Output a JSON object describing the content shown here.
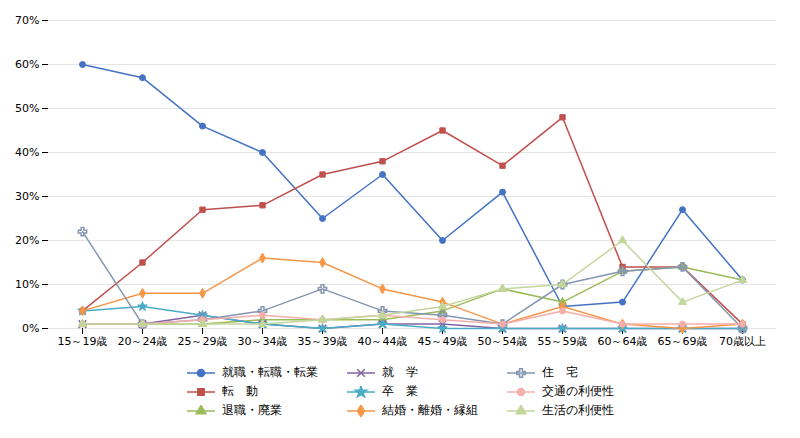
{
  "chart_data": {
    "type": "line",
    "categories": [
      "15～19歳",
      "20～24歳",
      "25～29歳",
      "30～34歳",
      "35～39歳",
      "40～44歳",
      "45～49歳",
      "50～54歳",
      "55～59歳",
      "60～64歳",
      "65～69歳",
      "70歳以上"
    ],
    "series": [
      {
        "name": "就職・転職・転業",
        "color": "#4472C4",
        "marker": "circle",
        "values": [
          60,
          57,
          46,
          40,
          25,
          35,
          20,
          31,
          5,
          6,
          27,
          11
        ]
      },
      {
        "name": "転　動",
        "color": "#C0504D",
        "marker": "square",
        "values": [
          4,
          15,
          27,
          28,
          35,
          38,
          45,
          37,
          48,
          14,
          14,
          1
        ]
      },
      {
        "name": "退職・廃業",
        "color": "#9BBB59",
        "marker": "triangle",
        "values": [
          1,
          1,
          1,
          2,
          2,
          2,
          4,
          9,
          6,
          13,
          14,
          11
        ]
      },
      {
        "name": "就　学",
        "color": "#8064A2",
        "marker": "times",
        "values": [
          1,
          1,
          3,
          1,
          0,
          1,
          1,
          0,
          0,
          0,
          0,
          0
        ]
      },
      {
        "name": "卒　業",
        "color": "#4BACC6",
        "marker": "star",
        "values": [
          4,
          5,
          3,
          1,
          0,
          1,
          0,
          0,
          0,
          0,
          0,
          0
        ]
      },
      {
        "name": "結婚・離婚・縁組",
        "color": "#F79646",
        "marker": "diamond",
        "values": [
          4,
          8,
          8,
          16,
          15,
          9,
          6,
          1,
          5,
          1,
          0,
          1
        ]
      },
      {
        "name": "住　宅",
        "color": "#8496B0",
        "marker": "plus",
        "values": [
          22,
          1,
          2,
          4,
          9,
          4,
          3,
          1,
          10,
          13,
          14,
          0
        ]
      },
      {
        "name": "交通の利便性",
        "color": "#F4AFAB",
        "marker": "circle",
        "values": [
          1,
          1,
          2,
          3,
          2,
          3,
          2,
          1,
          4,
          1,
          1,
          1
        ]
      },
      {
        "name": "生活の利便性",
        "color": "#C3D69B",
        "marker": "triangle",
        "values": [
          1,
          1,
          1,
          1,
          2,
          3,
          5,
          9,
          10,
          20,
          6,
          11
        ]
      }
    ],
    "ylim": [
      0,
      70
    ],
    "yticks": [
      {
        "value": 0,
        "label": "0%"
      },
      {
        "value": 10,
        "label": "10%"
      },
      {
        "value": 20,
        "label": "20%"
      },
      {
        "value": 30,
        "label": "30%"
      },
      {
        "value": 40,
        "label": "40%"
      },
      {
        "value": 50,
        "label": "50%"
      },
      {
        "value": 60,
        "label": "60%"
      },
      {
        "value": 70,
        "label": "70%"
      }
    ],
    "grid": true,
    "legend": "bottom"
  }
}
